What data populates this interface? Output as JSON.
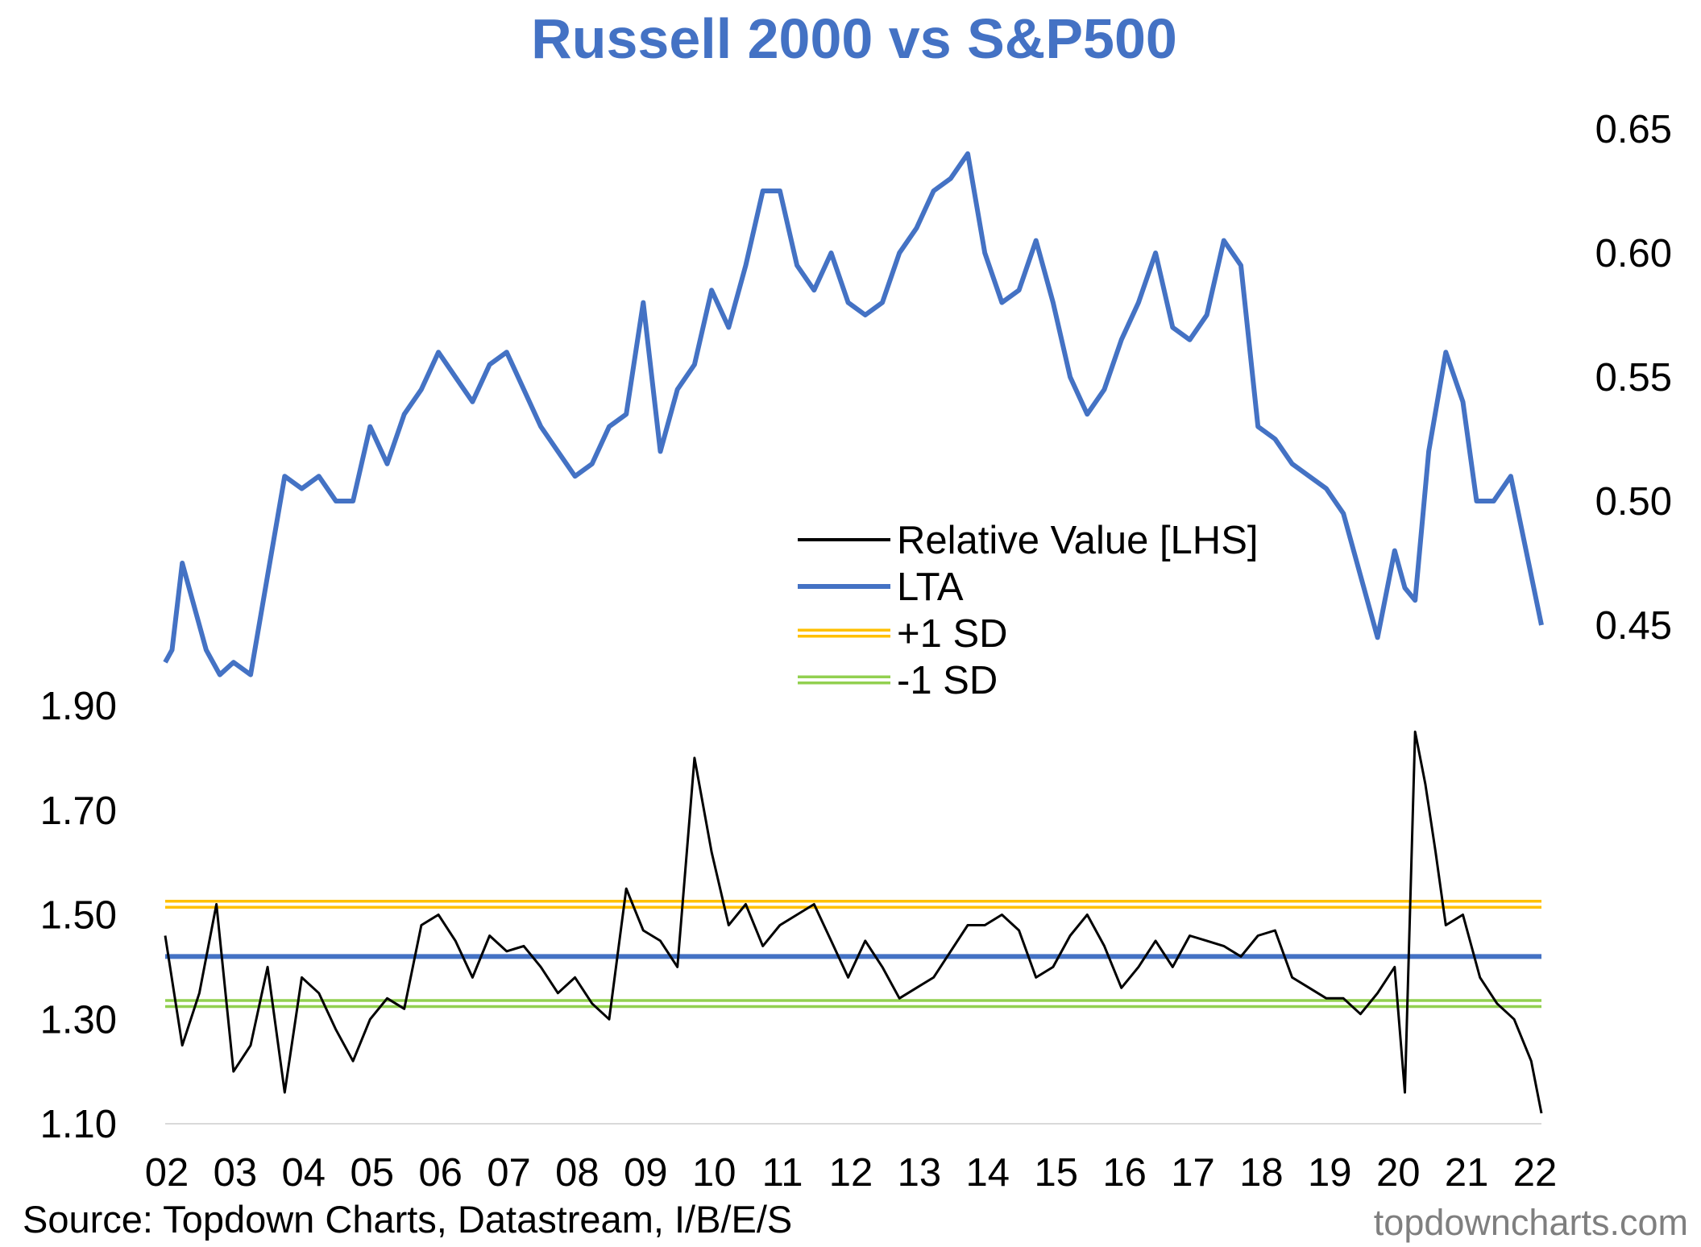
{
  "chart_data": {
    "type": "line",
    "title": "Russell 2000 vs S&P500",
    "source": "Source: Topdown Charts, Datastream, I/B/E/S",
    "watermark": "topdowncharts.com",
    "x_ticks": [
      "02",
      "03",
      "04",
      "05",
      "06",
      "07",
      "08",
      "09",
      "10",
      "11",
      "12",
      "13",
      "14",
      "15",
      "16",
      "17",
      "18",
      "19",
      "20",
      "21",
      "22"
    ],
    "y_left": {
      "ticks": [
        "1.10",
        "1.30",
        "1.50",
        "1.70",
        "1.90"
      ],
      "range": [
        1.1,
        1.9
      ]
    },
    "y_right": {
      "ticks": [
        "0.45",
        "0.50",
        "0.55",
        "0.60",
        "0.65"
      ],
      "range": [
        0.45,
        0.65
      ]
    },
    "legend_position": "center",
    "series": [
      {
        "name": "Relative Value [LHS]",
        "axis": "left",
        "color": "#000000",
        "x": [
          2002.0,
          2002.25,
          2002.5,
          2002.75,
          2003.0,
          2003.25,
          2003.5,
          2003.75,
          2004.0,
          2004.25,
          2004.5,
          2004.75,
          2005.0,
          2005.25,
          2005.5,
          2005.75,
          2006.0,
          2006.25,
          2006.5,
          2006.75,
          2007.0,
          2007.25,
          2007.5,
          2007.75,
          2008.0,
          2008.25,
          2008.5,
          2008.75,
          2009.0,
          2009.25,
          2009.5,
          2009.75,
          2010.0,
          2010.25,
          2010.5,
          2010.75,
          2011.0,
          2011.25,
          2011.5,
          2011.75,
          2012.0,
          2012.25,
          2012.5,
          2012.75,
          2013.0,
          2013.25,
          2013.5,
          2013.75,
          2014.0,
          2014.25,
          2014.5,
          2014.75,
          2015.0,
          2015.25,
          2015.5,
          2015.75,
          2016.0,
          2016.25,
          2016.5,
          2016.75,
          2017.0,
          2017.25,
          2017.5,
          2017.75,
          2018.0,
          2018.25,
          2018.5,
          2018.75,
          2019.0,
          2019.25,
          2019.5,
          2019.75,
          2020.0,
          2020.15,
          2020.3,
          2020.45,
          2020.6,
          2020.75,
          2021.0,
          2021.25,
          2021.5,
          2021.75,
          2022.0,
          2022.15
        ],
        "values": [
          1.46,
          1.25,
          1.35,
          1.52,
          1.2,
          1.25,
          1.4,
          1.16,
          1.38,
          1.35,
          1.28,
          1.22,
          1.3,
          1.34,
          1.32,
          1.48,
          1.5,
          1.45,
          1.38,
          1.46,
          1.43,
          1.44,
          1.4,
          1.35,
          1.38,
          1.33,
          1.3,
          1.55,
          1.47,
          1.45,
          1.4,
          1.8,
          1.62,
          1.48,
          1.52,
          1.44,
          1.48,
          1.5,
          1.52,
          1.45,
          1.38,
          1.45,
          1.4,
          1.34,
          1.36,
          1.38,
          1.43,
          1.48,
          1.48,
          1.5,
          1.47,
          1.38,
          1.4,
          1.46,
          1.5,
          1.44,
          1.36,
          1.4,
          1.45,
          1.4,
          1.46,
          1.45,
          1.44,
          1.42,
          1.46,
          1.47,
          1.38,
          1.36,
          1.34,
          1.34,
          1.31,
          1.35,
          1.4,
          1.16,
          1.85,
          1.75,
          1.62,
          1.48,
          1.5,
          1.38,
          1.33,
          1.3,
          1.22,
          1.12
        ]
      },
      {
        "name": "LTA",
        "axis": "left",
        "color": "#4472C4",
        "x": [
          2002.0,
          2022.15
        ],
        "values": [
          1.42,
          1.42
        ]
      },
      {
        "name": "+1 SD",
        "axis": "left",
        "color": "#FFC000",
        "x": [
          2002.0,
          2022.15
        ],
        "values": [
          1.52,
          1.52
        ]
      },
      {
        "name": "-1 SD",
        "axis": "left",
        "color": "#92D050",
        "x": [
          2002.0,
          2022.15
        ],
        "values": [
          1.33,
          1.33
        ]
      },
      {
        "axis": "right",
        "color": "#4472C4",
        "x": [
          2002.0,
          2002.1,
          2002.25,
          2002.4,
          2002.6,
          2002.8,
          2003.0,
          2003.25,
          2003.5,
          2003.75,
          2004.0,
          2004.25,
          2004.5,
          2004.75,
          2005.0,
          2005.25,
          2005.5,
          2005.75,
          2006.0,
          2006.25,
          2006.5,
          2006.75,
          2007.0,
          2007.25,
          2007.5,
          2007.75,
          2008.0,
          2008.25,
          2008.5,
          2008.75,
          2009.0,
          2009.25,
          2009.5,
          2009.75,
          2010.0,
          2010.25,
          2010.5,
          2010.75,
          2011.0,
          2011.25,
          2011.5,
          2011.75,
          2012.0,
          2012.25,
          2012.5,
          2012.75,
          2013.0,
          2013.25,
          2013.5,
          2013.75,
          2014.0,
          2014.25,
          2014.5,
          2014.75,
          2015.0,
          2015.25,
          2015.5,
          2015.75,
          2016.0,
          2016.25,
          2016.5,
          2016.75,
          2017.0,
          2017.25,
          2017.5,
          2017.75,
          2018.0,
          2018.25,
          2018.5,
          2018.75,
          2019.0,
          2019.25,
          2019.5,
          2019.75,
          2020.0,
          2020.15,
          2020.3,
          2020.5,
          2020.75,
          2021.0,
          2021.2,
          2021.45,
          2021.7,
          2022.0,
          2022.15
        ],
        "values": [
          0.435,
          0.44,
          0.475,
          0.46,
          0.44,
          0.43,
          0.435,
          0.43,
          0.47,
          0.51,
          0.505,
          0.51,
          0.5,
          0.5,
          0.53,
          0.515,
          0.535,
          0.545,
          0.56,
          0.55,
          0.54,
          0.555,
          0.56,
          0.545,
          0.53,
          0.52,
          0.51,
          0.515,
          0.53,
          0.535,
          0.58,
          0.52,
          0.545,
          0.555,
          0.585,
          0.57,
          0.595,
          0.625,
          0.625,
          0.595,
          0.585,
          0.6,
          0.58,
          0.575,
          0.58,
          0.6,
          0.61,
          0.625,
          0.63,
          0.64,
          0.6,
          0.58,
          0.585,
          0.605,
          0.58,
          0.55,
          0.535,
          0.545,
          0.565,
          0.58,
          0.6,
          0.57,
          0.565,
          0.575,
          0.605,
          0.595,
          0.53,
          0.525,
          0.515,
          0.51,
          0.505,
          0.495,
          0.47,
          0.445,
          0.48,
          0.465,
          0.46,
          0.52,
          0.56,
          0.54,
          0.5,
          0.5,
          0.51,
          0.47,
          0.45
        ]
      }
    ]
  }
}
